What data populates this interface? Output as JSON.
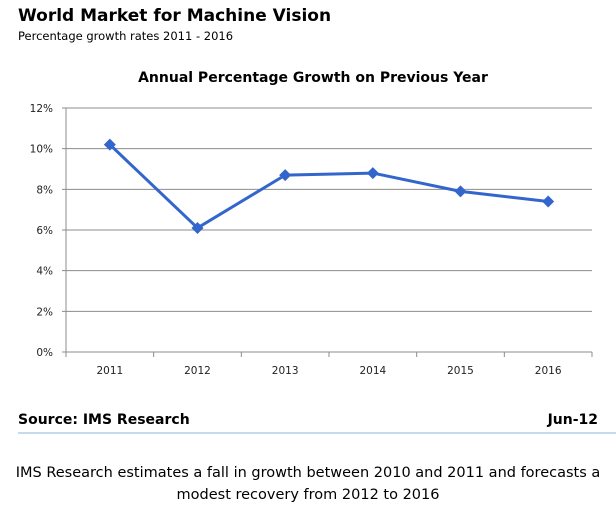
{
  "header": {
    "title": "World Market for Machine Vision",
    "subtitle": "Percentage growth rates 2011 - 2016"
  },
  "footer": {
    "source": "Source: IMS Research",
    "date": "Jun-12",
    "note": "IMS Research estimates a fall in growth between 2010 and 2011  and forecasts a modest recovery from 2012 to 2016"
  },
  "chart_data": {
    "type": "line",
    "title": "Annual Percentage Growth on Previous Year",
    "categories": [
      "2011",
      "2012",
      "2013",
      "2014",
      "2015",
      "2016"
    ],
    "values": [
      10.2,
      6.1,
      8.7,
      8.8,
      7.9,
      7.4
    ],
    "ylim": [
      0,
      12
    ],
    "yticks": [
      "0%",
      "2%",
      "4%",
      "6%",
      "8%",
      "10%",
      "12%"
    ],
    "grid": true,
    "color": "#3366cc",
    "marker": "diamond"
  }
}
